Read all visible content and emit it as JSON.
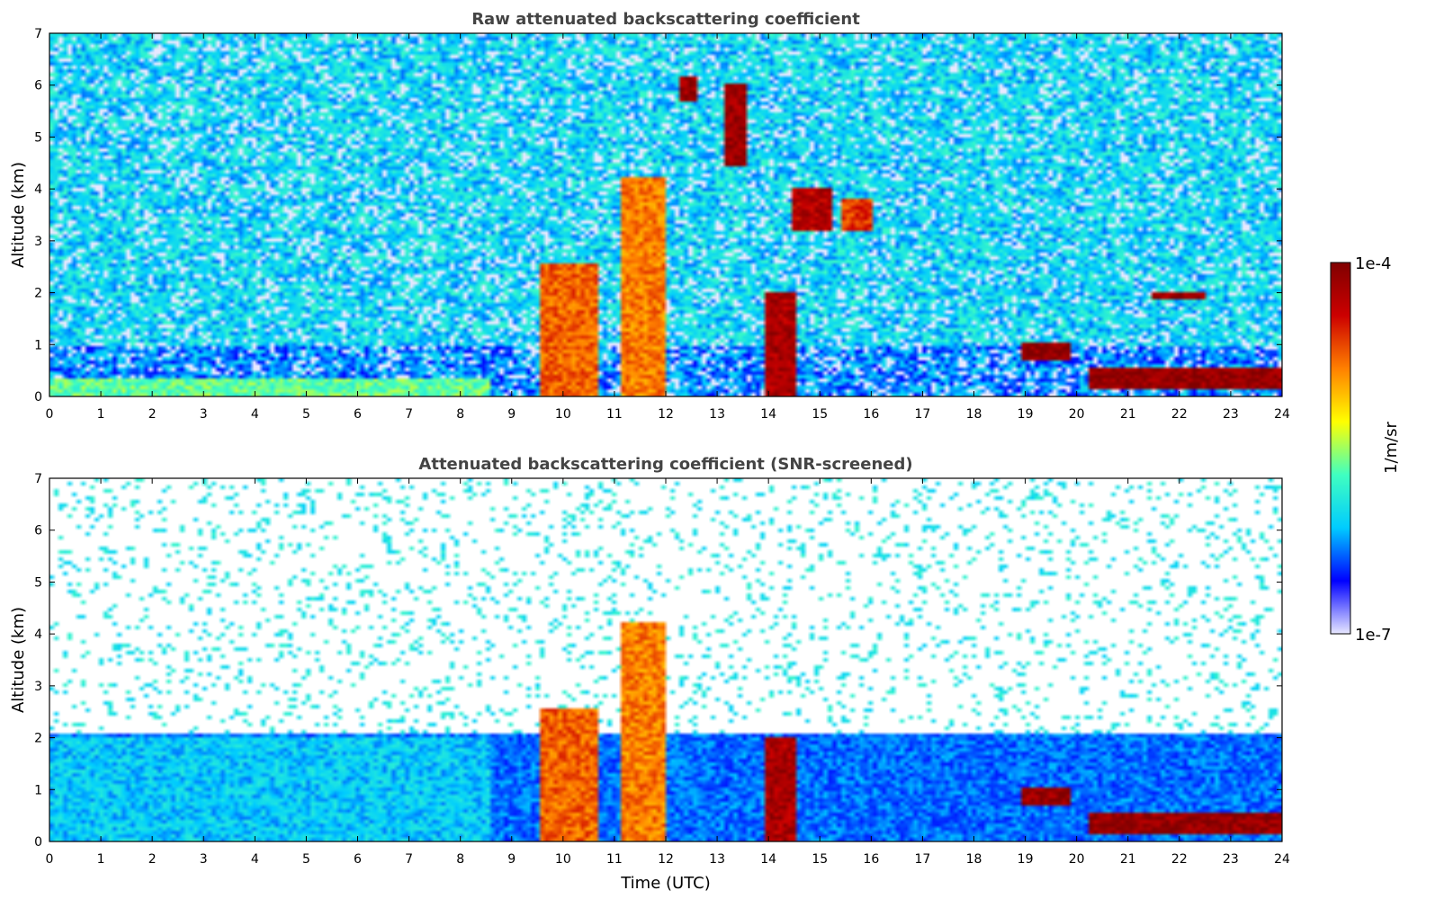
{
  "chart_data": [
    {
      "type": "heatmap",
      "title": "Raw attenuated backscattering coefficient",
      "xlabel": "",
      "ylabel": "Altitude (km)",
      "xlim": [
        0,
        24
      ],
      "ylim": [
        0,
        7
      ],
      "xticks": [
        "0",
        "1",
        "2",
        "3",
        "4",
        "5",
        "6",
        "7",
        "8",
        "9",
        "10",
        "11",
        "12",
        "13",
        "14",
        "15",
        "16",
        "17",
        "18",
        "19",
        "20",
        "21",
        "22",
        "23",
        "24"
      ],
      "yticks": [
        "0",
        "1",
        "2",
        "3",
        "4",
        "5",
        "6",
        "7"
      ],
      "features": [
        {
          "t0": 0,
          "t1": 8.5,
          "z0": 0,
          "z1": 0.3,
          "level": 0.45
        },
        {
          "t0": 9.6,
          "t1": 10.6,
          "z0": 0,
          "z1": 2.5,
          "level": 0.75
        },
        {
          "t0": 11.2,
          "t1": 12.0,
          "z0": 0,
          "z1": 4.2,
          "level": 0.72
        },
        {
          "t0": 12.3,
          "t1": 12.6,
          "z0": 5.7,
          "z1": 6.1,
          "level": 0.95
        },
        {
          "t0": 13.2,
          "t1": 13.5,
          "z0": 4.5,
          "z1": 6.0,
          "level": 0.95
        },
        {
          "t0": 14.0,
          "t1": 14.5,
          "z0": 0,
          "z1": 2.0,
          "level": 0.92
        },
        {
          "t0": 14.5,
          "t1": 15.2,
          "z0": 3.2,
          "z1": 4.0,
          "level": 0.9
        },
        {
          "t0": 15.5,
          "t1": 16.0,
          "z0": 3.2,
          "z1": 3.8,
          "level": 0.8
        },
        {
          "t0": 19.0,
          "t1": 19.8,
          "z0": 0.7,
          "z1": 1.0,
          "level": 0.96
        },
        {
          "t0": 20.3,
          "t1": 24.0,
          "z0": 0.2,
          "z1": 0.5,
          "level": 0.96
        },
        {
          "t0": 21.5,
          "t1": 22.5,
          "z0": 1.9,
          "z1": 2.0,
          "level": 0.95
        }
      ]
    },
    {
      "type": "heatmap",
      "title": "Attenuated backscattering coefficient (SNR-screened)",
      "xlabel": "Time (UTC)",
      "ylabel": "Altitude (km)",
      "xlim": [
        0,
        24
      ],
      "ylim": [
        0,
        7
      ],
      "xticks": [
        "0",
        "1",
        "2",
        "3",
        "4",
        "5",
        "6",
        "7",
        "8",
        "9",
        "10",
        "11",
        "12",
        "13",
        "14",
        "15",
        "16",
        "17",
        "18",
        "19",
        "20",
        "21",
        "22",
        "23",
        "24"
      ],
      "yticks": [
        "0",
        "1",
        "2",
        "3",
        "4",
        "5",
        "6",
        "7"
      ],
      "features": [
        {
          "t0": 0,
          "t1": 8.5,
          "z0": 0,
          "z1": 2.0,
          "level": 0.3
        },
        {
          "t0": 9.6,
          "t1": 10.6,
          "z0": 0,
          "z1": 2.5,
          "level": 0.75
        },
        {
          "t0": 11.2,
          "t1": 12.0,
          "z0": 0,
          "z1": 4.2,
          "level": 0.72
        },
        {
          "t0": 14.0,
          "t1": 14.5,
          "z0": 0,
          "z1": 2.0,
          "level": 0.92
        },
        {
          "t0": 19.0,
          "t1": 19.8,
          "z0": 0.7,
          "z1": 1.0,
          "level": 0.96
        },
        {
          "t0": 20.3,
          "t1": 24.0,
          "z0": 0.2,
          "z1": 0.5,
          "level": 0.96
        }
      ]
    }
  ],
  "colorbar": {
    "max_label": "1e-4",
    "min_label": "1e-7",
    "unit_label": "1/m/sr",
    "colors": [
      "#e8e8ff",
      "#0000ff",
      "#00ccff",
      "#40ffc0",
      "#ffff00",
      "#ff8000",
      "#cc0000",
      "#800000"
    ]
  }
}
